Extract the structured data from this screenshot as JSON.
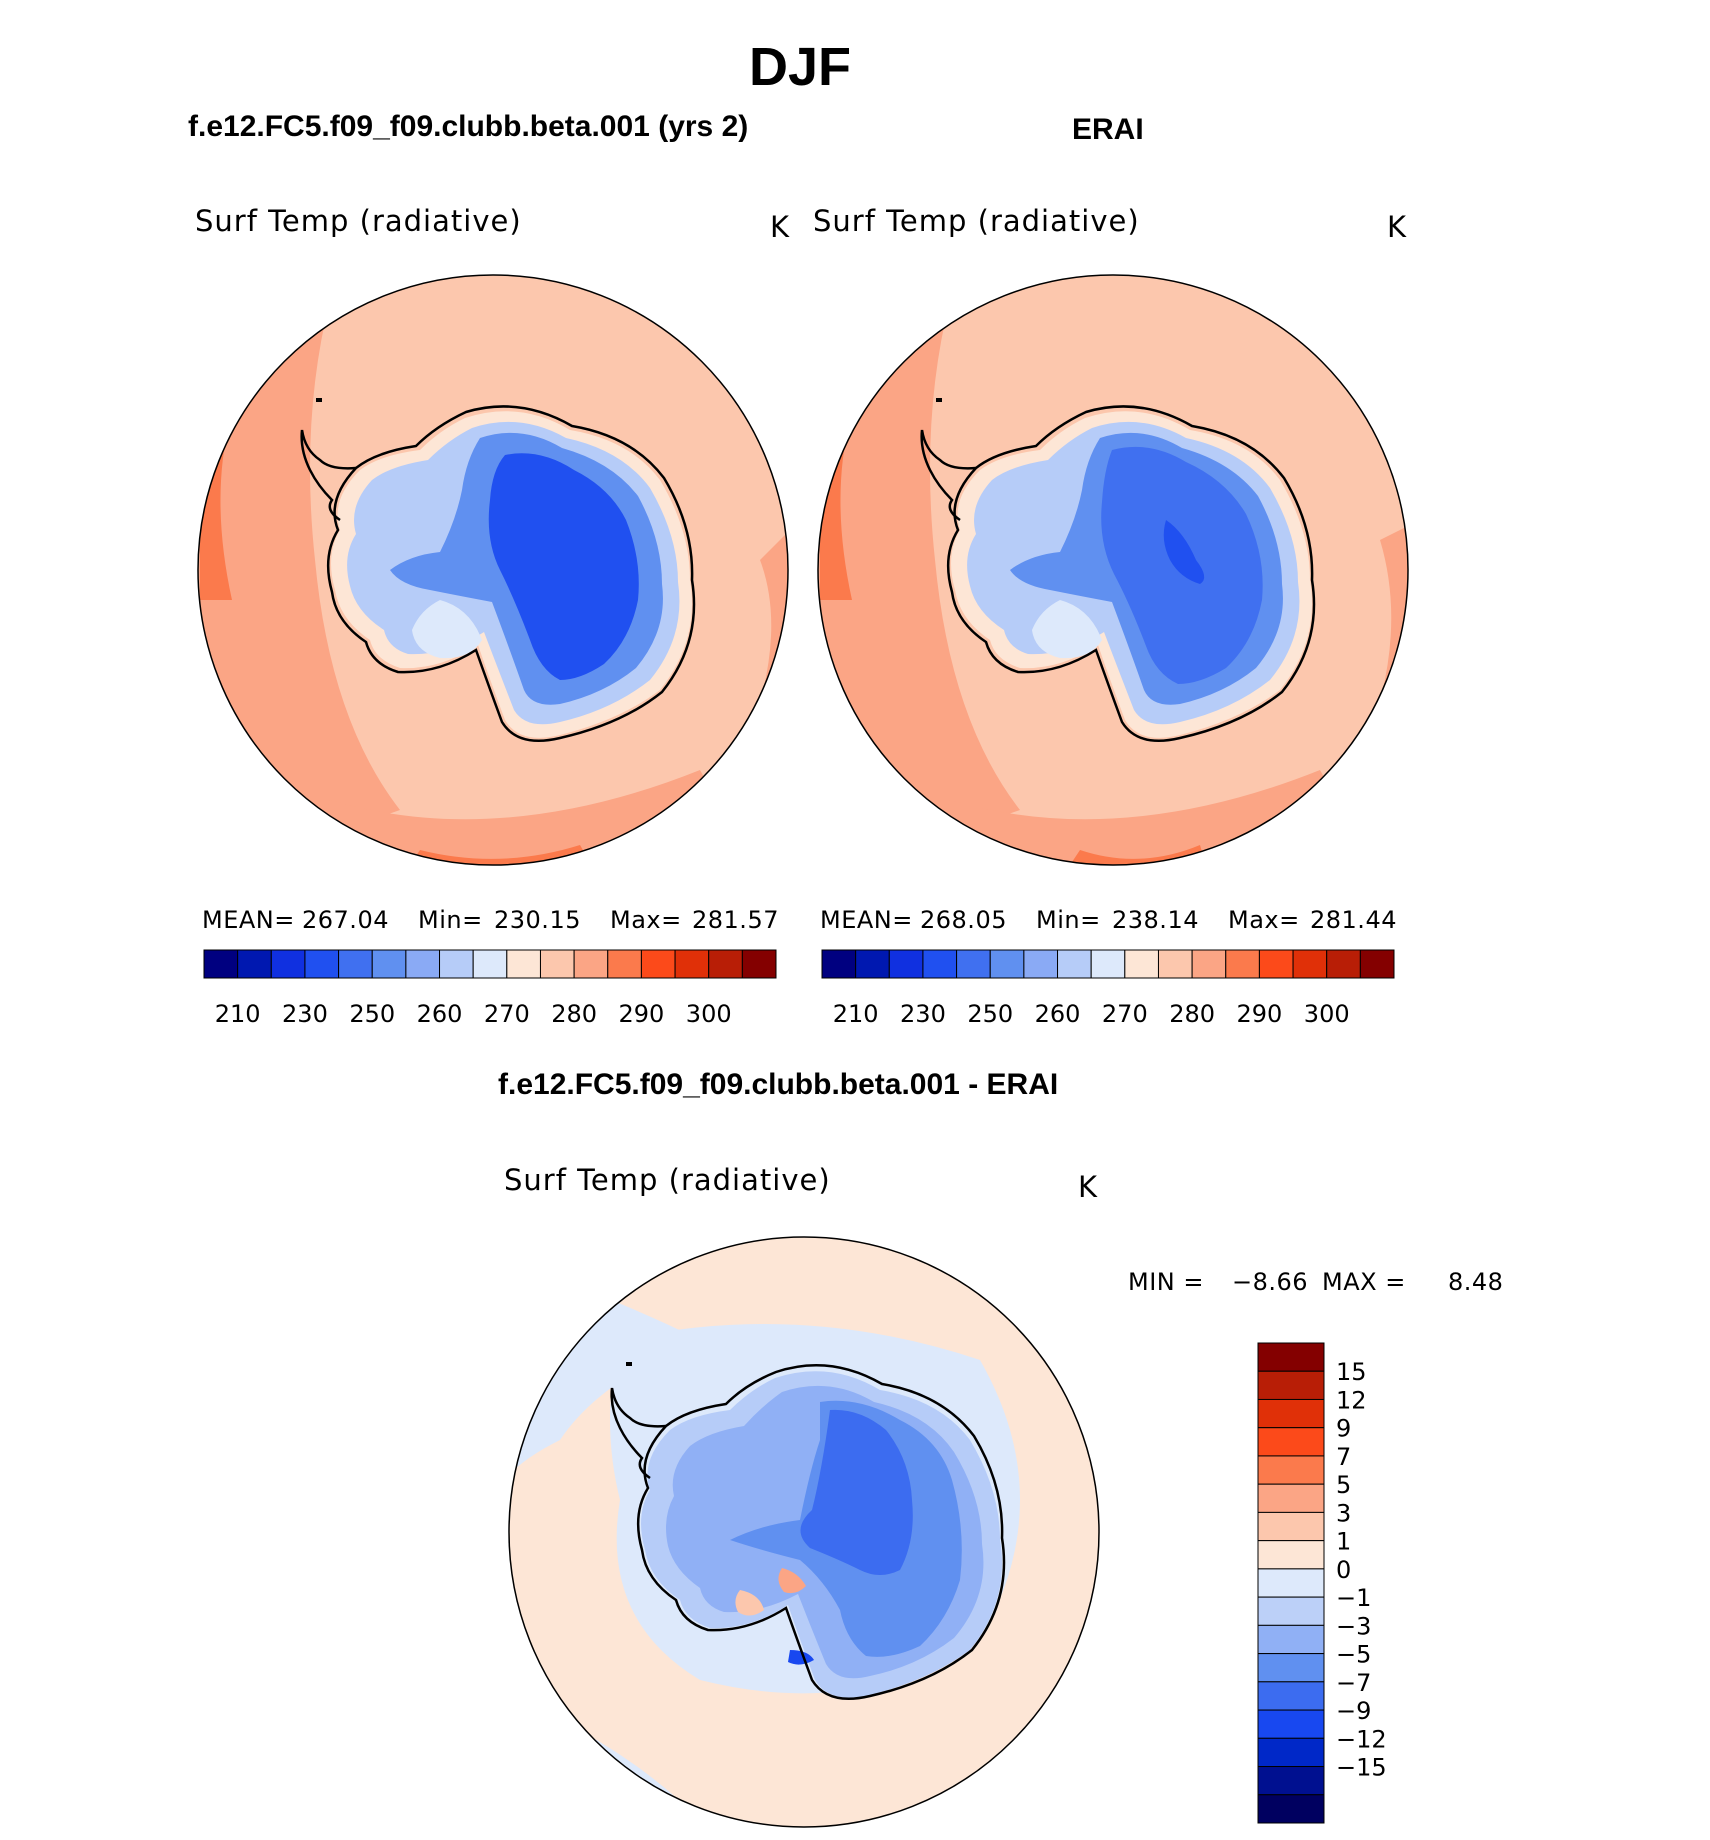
{
  "title": "DJF",
  "colors": {
    "abs_scale": [
      "#000080",
      "#0018b0",
      "#1030e0",
      "#2050f0",
      "#4070f0",
      "#6090f0",
      "#8aaaf5",
      "#b6ccf8",
      "#dde9fb",
      "#fde6d6",
      "#fcc7ad",
      "#fba585",
      "#fb7a4c",
      "#fc4a1a",
      "#e03008",
      "#b81e06",
      "#840000"
    ],
    "diff_scale": [
      "#000060",
      "#001090",
      "#0028c8",
      "#1848f0",
      "#3c6cf0",
      "#6090f0",
      "#90b0f5",
      "#bcd0f8",
      "#dde9fb",
      "#fde6d6",
      "#fcc7ad",
      "#fba585",
      "#fb7a4c",
      "#fc4a1a",
      "#e03008",
      "#b81e06",
      "#840000"
    ],
    "coast": "#000000"
  },
  "panels": {
    "model": {
      "title": "f.e12.FC5.f09_f09.clubb.beta.001 (yrs 2)",
      "var": "Surf Temp (radiative)",
      "units": "K",
      "mean_label": "MEAN=",
      "mean": "267.04",
      "min_label": "Min=",
      "min": "230.15",
      "max_label": "Max=",
      "max": "281.57"
    },
    "obs": {
      "title": "ERAI",
      "var": "Surf Temp (radiative)",
      "units": "K",
      "mean_label": "MEAN=",
      "mean": "268.05",
      "min_label": "Min=",
      "min": "238.14",
      "max_label": "Max=",
      "max": "281.44"
    },
    "diff": {
      "title": "f.e12.FC5.f09_f09.clubb.beta.001 - ERAI",
      "var": "Surf Temp (radiative)",
      "units": "K",
      "min_label": "MIN =",
      "min": "−8.66",
      "max_label": "MAX =",
      "max": "8.48"
    }
  },
  "chart_data": [
    {
      "type": "heatmap",
      "title": "f.e12.FC5.f09_f09.clubb.beta.001 (yrs 2)",
      "projection": "south polar stereographic",
      "colorbar_ticks": [
        "210",
        "230",
        "250",
        "260",
        "270",
        "280",
        "290",
        "300"
      ],
      "stats": {
        "mean": 267.04,
        "min": 230.15,
        "max": 281.57
      }
    },
    {
      "type": "heatmap",
      "title": "ERAI",
      "projection": "south polar stereographic",
      "colorbar_ticks": [
        "210",
        "230",
        "250",
        "260",
        "270",
        "280",
        "290",
        "300"
      ],
      "stats": {
        "mean": 268.05,
        "min": 238.14,
        "max": 281.44
      }
    },
    {
      "type": "heatmap",
      "title": "f.e12.FC5.f09_f09.clubb.beta.001 - ERAI",
      "projection": "south polar stereographic",
      "colorbar_ticks": [
        "15",
        "12",
        "9",
        "7",
        "5",
        "3",
        "1",
        "0",
        "−1",
        "−3",
        "−5",
        "−7",
        "−9",
        "−12",
        "−15"
      ],
      "stats": {
        "min": -8.66,
        "max": 8.48
      }
    }
  ]
}
